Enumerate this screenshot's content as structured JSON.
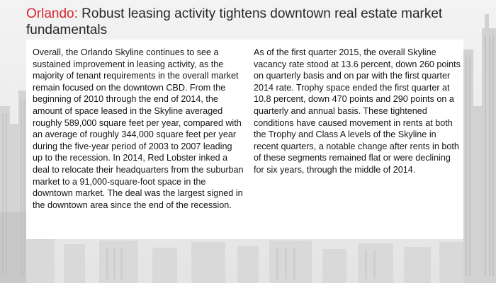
{
  "slide": {
    "title_lead": "Orlando:",
    "title_rest": " Robust leasing activity tightens downtown real estate market fundamentals",
    "left_paragraph": "Overall, the Orlando Skyline continues to see a sustained improvement in leasing activity, as the majority of tenant requirements in the overall market remain focused on the downtown CBD. From the beginning of 2010 through the end of 2014, the amount of space leased in the Skyline averaged roughly 589,000 square feet per year, compared with an average of roughly 344,000 square feet per year during the five-year period of 2003 to 2007 leading up to the recession. In 2014, Red Lobster inked a deal to relocate their headquarters from the suburban market to a 91,000-square-foot space in the downtown market. The deal was the largest signed in the downtown area since the end of the recession.",
    "right_paragraph": "As of the first quarter 2015, the overall Skyline vacancy rate stood at 13.6 percent, down 260 points on quarterly basis and on par with the first quarter 2014 rate. Trophy space ended the first quarter at 10.8 percent, down 470 points and 290 points on a quarterly and annual basis. These tightened conditions have caused movement in rents at both the Trophy and Class A levels of the Skyline in recent quarters, a notable change after rents in both of these segments remained flat or were declining for six years, through the middle of 2014."
  },
  "colors": {
    "title_accent": "#d6262f",
    "title_text": "#262626",
    "background": "#ededed",
    "panel": "#ffffff",
    "skyline": "#cfcfcf"
  }
}
